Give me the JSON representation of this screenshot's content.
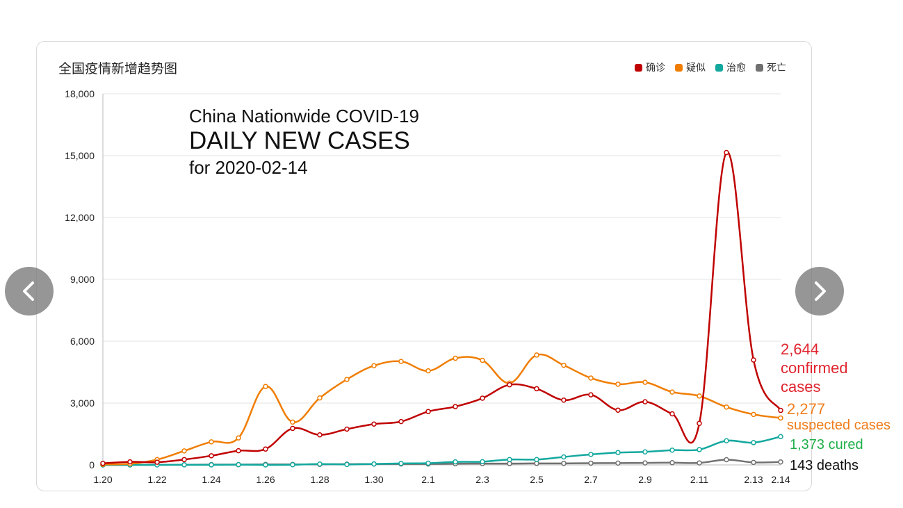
{
  "chart_data": {
    "type": "line",
    "title": "全国疫情新增趋势图",
    "categories": [
      "1.20",
      "1.21",
      "1.22",
      "1.23",
      "1.24",
      "1.25",
      "1.26",
      "1.27",
      "1.28",
      "1.29",
      "1.30",
      "1.31",
      "2.1",
      "2.2",
      "2.3",
      "2.4",
      "2.5",
      "2.6",
      "2.7",
      "2.8",
      "2.9",
      "2.10",
      "2.11",
      "2.12",
      "2.13",
      "2.14"
    ],
    "x_tick_labels": [
      "1.20",
      "1.22",
      "1.24",
      "1.26",
      "1.28",
      "1.30",
      "2.1",
      "2.3",
      "2.5",
      "2.7",
      "2.9",
      "2.11",
      "2.13",
      "2.14"
    ],
    "y_tick_labels": [
      "0",
      "3,000",
      "6,000",
      "9,000",
      "12,000",
      "15,000",
      "18,000"
    ],
    "y_ticks": [
      0,
      3000,
      6000,
      9000,
      12000,
      15000,
      18000
    ],
    "ylim": [
      0,
      18000
    ],
    "grid": true,
    "legend_position": "top-right",
    "series": [
      {
        "name": "确诊",
        "color": "#c00000",
        "values": [
          77,
          149,
          131,
          259,
          444,
          688,
          769,
          1771,
          1459,
          1737,
          1982,
          2102,
          2590,
          2829,
          3235,
          3887,
          3694,
          3143,
          3399,
          2656,
          3062,
          2478,
          2015,
          15152,
          5090,
          2644
        ]
      },
      {
        "name": "疑似",
        "color": "#f07d00",
        "values": [
          27,
          53,
          257,
          680,
          1118,
          1309,
          3806,
          2077,
          3248,
          4148,
          4812,
          5019,
          4562,
          5173,
          5072,
          3971,
          5328,
          4833,
          4214,
          3916,
          4008,
          3536,
          3342,
          2807,
          2450,
          2277
        ]
      },
      {
        "name": "治愈",
        "color": "#13a89e",
        "values": [
          0,
          0,
          0,
          6,
          3,
          11,
          2,
          9,
          43,
          21,
          47,
          72,
          85,
          147,
          157,
          262,
          261,
          387,
          510,
          600,
          632,
          716,
          744,
          1171,
          1081,
          1373
        ]
      },
      {
        "name": "死亡",
        "color": "#707070",
        "values": [
          0,
          3,
          8,
          8,
          16,
          15,
          24,
          26,
          26,
          38,
          43,
          46,
          45,
          57,
          64,
          65,
          73,
          73,
          86,
          89,
          97,
          108,
          97,
          254,
          121,
          143
        ]
      }
    ]
  },
  "overlay": {
    "line1": "China Nationwide COVID-19",
    "line2": "DAILY NEW CASES",
    "line3": "for 2020-02-14"
  },
  "annotations": {
    "confirmed_num": "2,644",
    "confirmed_txt1": "confirmed",
    "confirmed_txt2": "cases",
    "suspected_num": "2,277",
    "suspected_txt": "suspected cases",
    "cured": "1,373 cured",
    "deaths": "143 deaths"
  },
  "nav": {
    "prev_icon": "chevron-left-icon",
    "next_icon": "chevron-right-icon"
  }
}
